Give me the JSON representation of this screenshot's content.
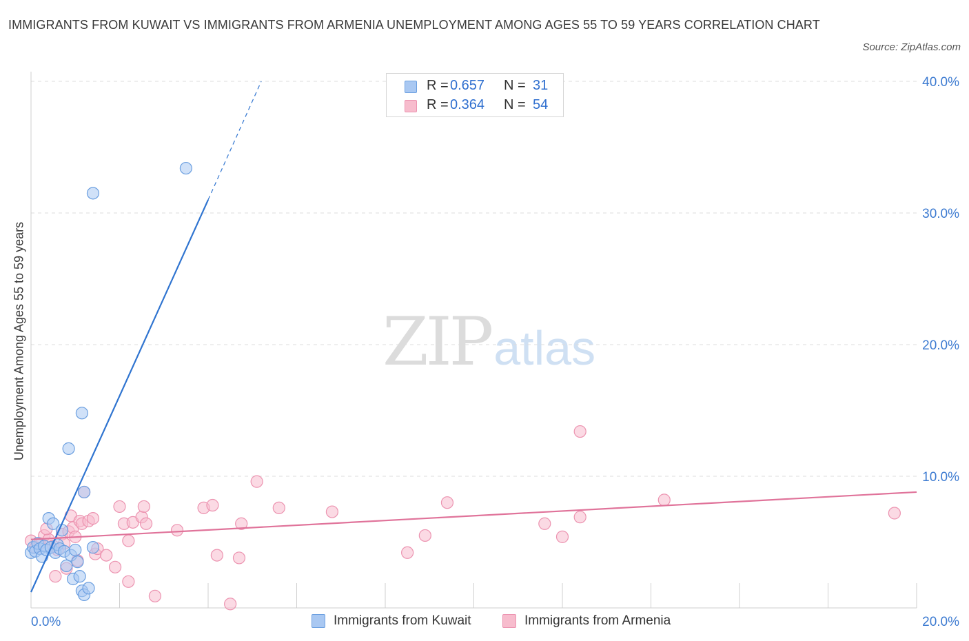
{
  "title": "IMMIGRANTS FROM KUWAIT VS IMMIGRANTS FROM ARMENIA UNEMPLOYMENT AMONG AGES 55 TO 59 YEARS CORRELATION CHART",
  "source": "Source: ZipAtlas.com",
  "watermark": {
    "zip": "ZIP",
    "atlas": "atlas"
  },
  "colors": {
    "kuwait_fill": "#a9c8f2",
    "kuwait_stroke": "#6b9fe0",
    "kuwait_line": "#2f74d0",
    "armenia_fill": "#f7bccd",
    "armenia_stroke": "#ec93b0",
    "armenia_line": "#e0739a",
    "tick_label": "#3d7bd1",
    "grid": "#dddddd"
  },
  "legend": {
    "kuwait": {
      "r_label": "R =",
      "r_value": "0.657",
      "n_label": "N =",
      "n_value": "31"
    },
    "armenia": {
      "r_label": "R =",
      "r_value": "0.364",
      "n_label": "N =",
      "n_value": "54"
    }
  },
  "chart_data": {
    "type": "scatter",
    "title": "IMMIGRANTS FROM KUWAIT VS IMMIGRANTS FROM ARMENIA UNEMPLOYMENT AMONG AGES 55 TO 59 YEARS CORRELATION CHART",
    "xlabel": "",
    "ylabel": "Unemployment Among Ages 55 to 59 years",
    "xlim": [
      0,
      20
    ],
    "ylim": [
      0,
      40
    ],
    "x_tick_labels": [
      "0.0%",
      "20.0%"
    ],
    "y_ticks": [
      10,
      20,
      30,
      40
    ],
    "y_tick_labels": [
      "10.0%",
      "20.0%",
      "30.0%",
      "40.0%"
    ],
    "grid": true,
    "legend_position": "top-center",
    "series": [
      {
        "name": "Immigrants from Kuwait",
        "r": 0.657,
        "n": 31,
        "trend": {
          "x0": 0,
          "y0": 1.2,
          "x1": 4.0,
          "y1": 31.0,
          "x_dash_end": 5.2,
          "y_dash_end": 40.0
        },
        "points": [
          [
            0.0,
            4.2
          ],
          [
            0.05,
            4.6
          ],
          [
            0.1,
            4.3
          ],
          [
            0.15,
            4.9
          ],
          [
            0.2,
            4.5
          ],
          [
            0.25,
            3.9
          ],
          [
            0.3,
            4.7
          ],
          [
            0.35,
            4.4
          ],
          [
            0.4,
            6.8
          ],
          [
            0.45,
            4.6
          ],
          [
            0.5,
            6.4
          ],
          [
            0.55,
            4.2
          ],
          [
            0.6,
            4.8
          ],
          [
            0.65,
            4.5
          ],
          [
            0.7,
            5.9
          ],
          [
            0.75,
            4.3
          ],
          [
            0.8,
            3.2
          ],
          [
            0.9,
            4.0
          ],
          [
            0.95,
            2.2
          ],
          [
            1.0,
            4.4
          ],
          [
            1.05,
            3.5
          ],
          [
            1.1,
            2.4
          ],
          [
            1.15,
            1.3
          ],
          [
            1.2,
            1.0
          ],
          [
            1.3,
            1.5
          ],
          [
            1.4,
            4.6
          ],
          [
            0.85,
            12.1
          ],
          [
            1.15,
            14.8
          ],
          [
            1.2,
            8.8
          ],
          [
            1.4,
            31.5
          ],
          [
            3.5,
            33.4
          ]
        ]
      },
      {
        "name": "Immigrants from Armenia",
        "r": 0.364,
        "n": 54,
        "trend": {
          "x0": 0,
          "y0": 5.2,
          "x1": 20.0,
          "y1": 8.8
        },
        "points": [
          [
            0.0,
            5.1
          ],
          [
            0.1,
            4.6
          ],
          [
            0.2,
            4.9
          ],
          [
            0.3,
            5.5
          ],
          [
            0.4,
            5.2
          ],
          [
            0.5,
            4.7
          ],
          [
            0.55,
            2.4
          ],
          [
            0.6,
            4.4
          ],
          [
            0.7,
            5.6
          ],
          [
            0.75,
            4.9
          ],
          [
            0.8,
            3.0
          ],
          [
            0.85,
            5.8
          ],
          [
            0.9,
            7.0
          ],
          [
            0.95,
            6.1
          ],
          [
            1.0,
            5.4
          ],
          [
            1.05,
            3.6
          ],
          [
            1.1,
            6.6
          ],
          [
            1.15,
            6.4
          ],
          [
            1.2,
            8.8
          ],
          [
            1.3,
            6.6
          ],
          [
            1.4,
            6.8
          ],
          [
            1.45,
            4.1
          ],
          [
            1.5,
            4.5
          ],
          [
            1.7,
            4.0
          ],
          [
            1.9,
            3.1
          ],
          [
            2.0,
            7.7
          ],
          [
            2.1,
            6.4
          ],
          [
            2.2,
            5.1
          ],
          [
            2.2,
            2.0
          ],
          [
            2.3,
            6.5
          ],
          [
            2.5,
            6.9
          ],
          [
            2.55,
            7.7
          ],
          [
            2.6,
            6.4
          ],
          [
            2.8,
            0.9
          ],
          [
            3.3,
            5.9
          ],
          [
            3.9,
            7.6
          ],
          [
            4.1,
            7.8
          ],
          [
            4.2,
            4.0
          ],
          [
            4.5,
            0.3
          ],
          [
            4.7,
            3.8
          ],
          [
            4.75,
            6.4
          ],
          [
            5.1,
            9.6
          ],
          [
            5.6,
            7.6
          ],
          [
            6.8,
            7.3
          ],
          [
            8.5,
            4.2
          ],
          [
            8.9,
            5.5
          ],
          [
            9.4,
            8.0
          ],
          [
            11.6,
            6.4
          ],
          [
            12.0,
            5.4
          ],
          [
            12.4,
            6.9
          ],
          [
            12.4,
            13.4
          ],
          [
            14.3,
            8.2
          ],
          [
            19.5,
            7.2
          ],
          [
            0.35,
            6.0
          ]
        ]
      }
    ]
  },
  "bottom_legend": {
    "kuwait": "Immigrants from Kuwait",
    "armenia": "Immigrants from Armenia"
  }
}
